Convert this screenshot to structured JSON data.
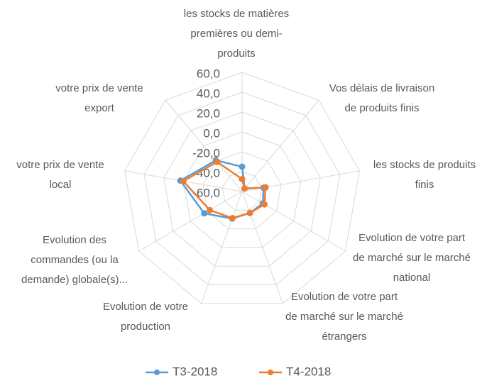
{
  "chart_data": {
    "type": "radar",
    "categories": [
      "les stocks de matières premières ou demi-produits",
      "Vos délais de livraison de produits finis",
      "les stocks de produits finis",
      "Evolution de votre part de marché sur le marché national",
      "Evolution de votre part de marché sur le marché étrangers",
      "Evolution de votre production",
      "Evolution des commandes (ou la demande) globale(s)...",
      "votre prix de vente local",
      "votre prix de vente export"
    ],
    "series": [
      {
        "name": "T3-2018",
        "color": "#5b9bd5",
        "values": [
          -35,
          -56,
          -38,
          -36,
          -37,
          -31,
          -16,
          3,
          -19
        ]
      },
      {
        "name": "T4-2018",
        "color": "#ed7d31",
        "values": [
          -47.5,
          -56,
          -36,
          -34,
          -37,
          -31.5,
          -22.5,
          0,
          -21
        ]
      }
    ],
    "ylim": [
      -60,
      60
    ],
    "yticks": [
      {
        "value": -60,
        "label": "-60,0"
      },
      {
        "value": -40,
        "label": "-40,0"
      },
      {
        "value": -20,
        "label": "-20,0"
      },
      {
        "value": 0,
        "label": "0,0"
      },
      {
        "value": 20,
        "label": "20,0"
      },
      {
        "value": 40,
        "label": "40,0"
      },
      {
        "value": 60,
        "label": "60,0"
      }
    ],
    "grid": true,
    "legend": "bottom"
  }
}
